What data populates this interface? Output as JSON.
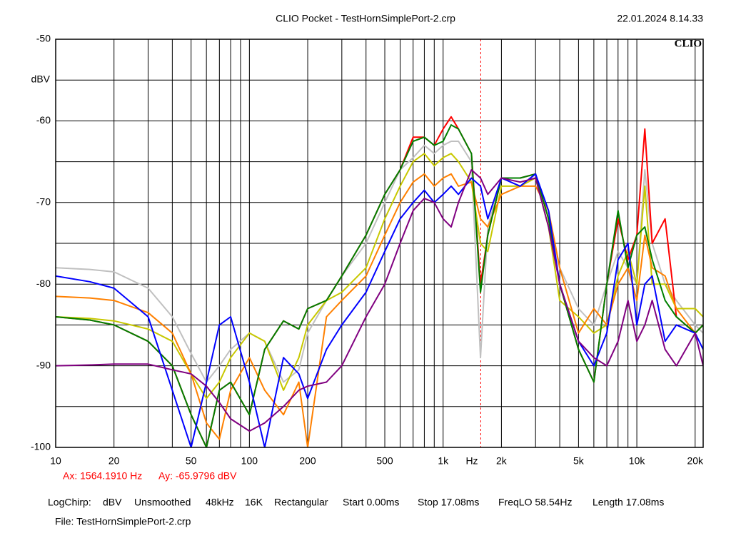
{
  "header": {
    "title": "CLIO Pocket - TestHornSimplePort-2.crp",
    "date": "22.01.2024 8.14.33",
    "logo": "CLIO"
  },
  "chart_data": {
    "type": "line",
    "log_x": true,
    "grid": true,
    "ylabel": "dBV",
    "xlabel": "Hz",
    "xlim": [
      10,
      22000
    ],
    "ylim": [
      -100,
      -50
    ],
    "xticks": [
      10,
      20,
      50,
      100,
      200,
      500,
      {
        "value": 1000,
        "label": "1k"
      },
      {
        "value": 2000,
        "label": "2k"
      },
      {
        "value": 5000,
        "label": "5k"
      },
      {
        "value": 10000,
        "label": "10k"
      },
      {
        "value": 20000,
        "label": "20k"
      }
    ],
    "xminor_ticks": [
      30,
      40,
      60,
      70,
      80,
      90,
      300,
      400,
      600,
      700,
      800,
      900,
      3000,
      4000,
      6000,
      7000,
      8000,
      9000
    ],
    "yticks": [
      -50,
      -60,
      -70,
      -80,
      -90,
      -100
    ],
    "yminor_ticks": [
      -55,
      -65,
      -75,
      -85,
      -95
    ],
    "cursor": {
      "x": 1564.191,
      "y": -65.9796,
      "x_label": "Ax: 1564.1910 Hz",
      "y_label": "Ay: -65.9796 dBV",
      "color": "#ff0000"
    },
    "x": [
      10,
      15,
      20,
      30,
      40,
      50,
      60,
      70,
      80,
      100,
      120,
      150,
      180,
      200,
      250,
      300,
      400,
      500,
      600,
      700,
      800,
      900,
      1000,
      1100,
      1200,
      1400,
      1560,
      1700,
      2000,
      2500,
      3000,
      3500,
      4000,
      5000,
      6000,
      7000,
      8000,
      9000,
      10000,
      11000,
      12000,
      14000,
      16000,
      20000,
      22000
    ],
    "series": [
      {
        "color": "#c0c0c0",
        "values": [
          -78,
          -78.2,
          -78.5,
          -80.5,
          -84,
          -88.5,
          -92,
          -90,
          -88,
          -86,
          -87,
          -92,
          -90.5,
          -86,
          -82,
          -79,
          -75,
          -70,
          -66,
          -64.5,
          -63,
          -64,
          -63,
          -62.5,
          -62.5,
          -65,
          -89,
          -73,
          -67,
          -67,
          -66.5,
          -72,
          -78,
          -83,
          -85,
          -80,
          -76,
          -78,
          -80,
          -66,
          -75,
          -80,
          -82,
          -85,
          -86
        ]
      },
      {
        "color": "#ff0000",
        "values": [
          -84,
          -84.4,
          -85,
          -87,
          -90,
          -96,
          -100,
          -93,
          -92,
          -96,
          -88,
          -84.5,
          -85.5,
          -83,
          -82,
          -79,
          -74,
          -69,
          -66,
          -62,
          -62,
          -63,
          -61,
          -59.5,
          -61,
          -64,
          -80,
          -74,
          -67,
          -67,
          -66.5,
          -72,
          -80,
          -88,
          -92,
          -80,
          -72,
          -77,
          -74,
          -61,
          -75,
          -72,
          -84,
          -86,
          -85
        ]
      },
      {
        "color": "#c8c800",
        "values": [
          -84,
          -84.2,
          -84.5,
          -85.5,
          -87,
          -91,
          -94,
          -92,
          -89,
          -86,
          -87,
          -93,
          -89,
          -85,
          -82,
          -81,
          -78,
          -72,
          -68,
          -65,
          -64,
          -65.5,
          -64.5,
          -64,
          -65,
          -67.5,
          -75,
          -76,
          -68,
          -68,
          -67,
          -73,
          -82,
          -84,
          -86,
          -85,
          -79,
          -76,
          -80,
          -68,
          -80,
          -80,
          -83,
          -83,
          -84
        ]
      },
      {
        "color": "#ff8000",
        "values": [
          -81.5,
          -81.7,
          -82,
          -83.5,
          -86,
          -91,
          -97,
          -99,
          -93,
          -89,
          -93,
          -96,
          -92,
          -100,
          -84,
          -82,
          -79,
          -74,
          -70,
          -67.5,
          -66.5,
          -68,
          -67,
          -66.5,
          -68,
          -67.5,
          -72,
          -73,
          -69,
          -68,
          -68,
          -71,
          -78,
          -86,
          -83,
          -85,
          -80,
          -78,
          -82,
          -74,
          -78,
          -79,
          -83,
          -86,
          -85
        ]
      },
      {
        "color": "#008000",
        "values": [
          -84,
          -84.4,
          -85,
          -87,
          -90,
          -96,
          -100,
          -93,
          -92,
          -96,
          -88,
          -84.5,
          -85.5,
          -83,
          -82,
          -79,
          -74,
          -69,
          -66,
          -62.5,
          -62,
          -63,
          -62.5,
          -60.5,
          -61,
          -64,
          -81,
          -74,
          -67,
          -67,
          -66.5,
          -72,
          -80,
          -88,
          -92,
          -80,
          -71,
          -78,
          -74,
          -73,
          -77,
          -82,
          -84,
          -86,
          -85
        ]
      },
      {
        "color": "#0000ff",
        "values": [
          -79,
          -79.7,
          -80.5,
          -84,
          -93,
          -100,
          -92,
          -85,
          -84,
          -92,
          -100,
          -89,
          -91,
          -94,
          -88,
          -85,
          -81,
          -76,
          -72,
          -70,
          -68.5,
          -70,
          -69,
          -68,
          -69,
          -67,
          -68,
          -72,
          -67,
          -68,
          -66.5,
          -71,
          -80,
          -87,
          -90,
          -86,
          -77,
          -75,
          -85,
          -80,
          -79,
          -87,
          -85,
          -86,
          -88
        ]
      },
      {
        "color": "#800080",
        "values": [
          -90,
          -89.9,
          -89.8,
          -89.8,
          -90.5,
          -91,
          -92.5,
          -94.5,
          -96.5,
          -98,
          -97,
          -95,
          -93,
          -92.5,
          -92,
          -90,
          -84,
          -80,
          -75,
          -71,
          -69.5,
          -70,
          -72,
          -73,
          -70,
          -66,
          -67,
          -69,
          -67,
          -67.5,
          -67,
          -73,
          -80,
          -87,
          -89,
          -90,
          -87,
          -82,
          -87,
          -85,
          -82,
          -88,
          -90,
          -86,
          -90
        ]
      }
    ]
  },
  "footer": {
    "settings": [
      "LogChirp:",
      "dBV",
      "Unsmoothed",
      "48kHz",
      "16K",
      "Rectangular",
      "Start 0.00ms",
      "Stop 17.08ms",
      "FreqLO 58.54Hz",
      "Length 17.08ms"
    ],
    "file": "File: TestHornSimplePort-2.crp"
  }
}
